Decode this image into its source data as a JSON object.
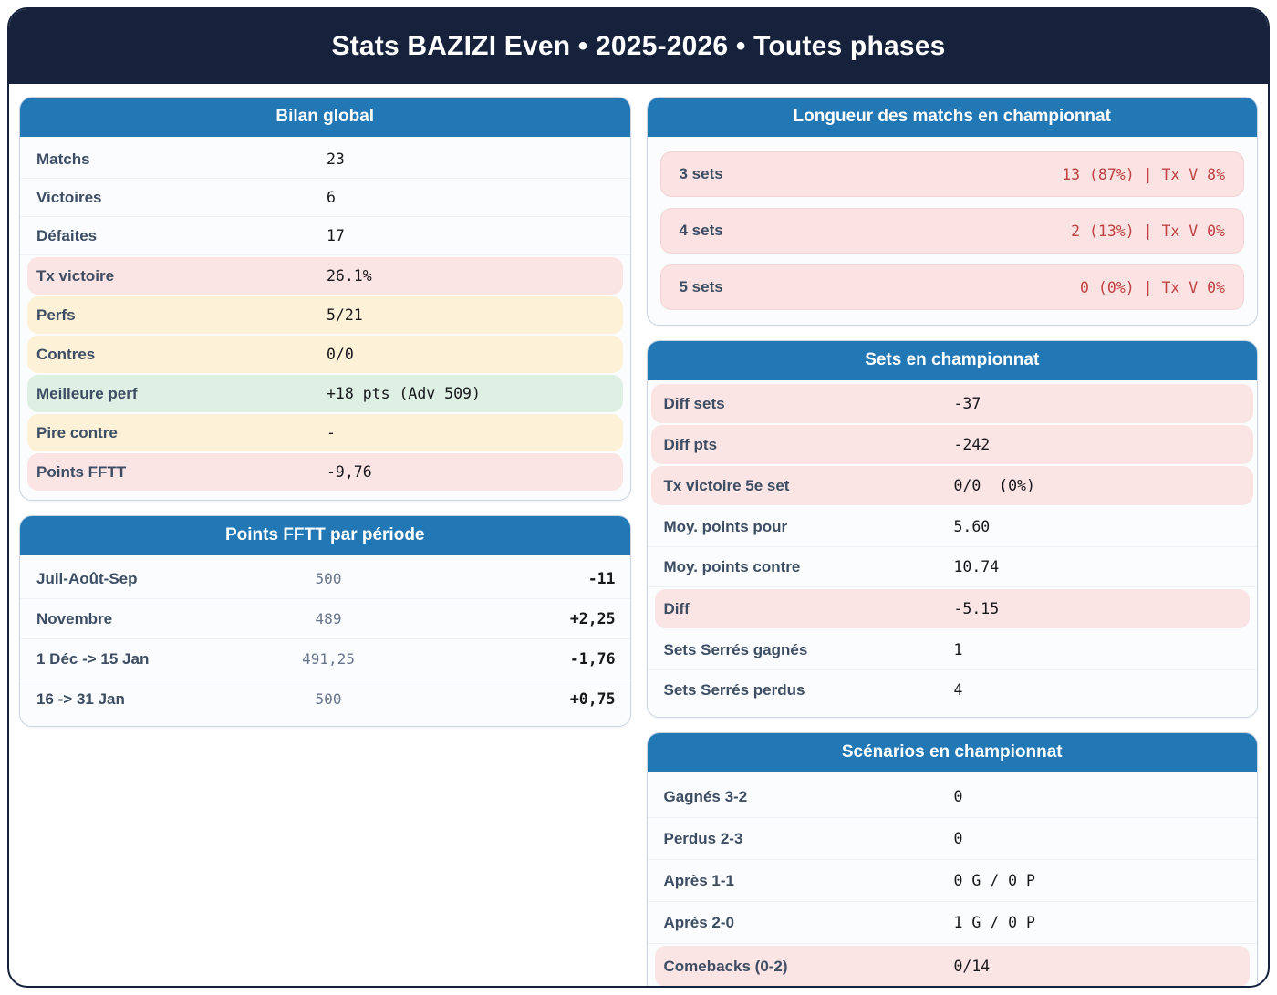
{
  "header": {
    "title": "Stats BAZIZI Even • 2025-2026 • Toutes phases"
  },
  "colors": {
    "page_border": "#16223c",
    "header_navy": "#16223c",
    "card_header_blue": "#2277b5",
    "label_slate": "#3d4d63",
    "highlight_pink": "#fbe4e4",
    "highlight_cream": "#fdf1d7",
    "highlight_green": "#def0e4",
    "value_red": "#bf4343"
  },
  "cards": {
    "bilan": {
      "title": "Bilan global",
      "rows": [
        {
          "label": "Matchs",
          "value": "23"
        },
        {
          "label": "Victoires",
          "value": "6"
        },
        {
          "label": "Défaites",
          "value": "17"
        },
        {
          "label": "Tx victoire",
          "value": "26.1%"
        },
        {
          "label": "Perfs",
          "value": "5/21"
        },
        {
          "label": "Contres",
          "value": "0/0"
        },
        {
          "label": "Meilleure perf",
          "value": "+18 pts (Adv 509)"
        },
        {
          "label": "Pire contre",
          "value": "-"
        },
        {
          "label": "Points FFTT",
          "value": "-9,76"
        }
      ]
    },
    "periodes": {
      "title": "Points FFTT par période",
      "rows": [
        {
          "label": "Juil-Août-Sep",
          "points": "500",
          "delta": "-11"
        },
        {
          "label": "Novembre",
          "points": "489",
          "delta": "+2,25"
        },
        {
          "label": "1 Déc -> 15 Jan",
          "points": "491,25",
          "delta": "-1,76"
        },
        {
          "label": "16 -> 31 Jan",
          "points": "500",
          "delta": "+0,75"
        }
      ]
    },
    "longueur": {
      "title": "Longueur des matchs en championnat",
      "rows": [
        {
          "label": "3 sets",
          "value": "13 (87%) | Tx V 8%"
        },
        {
          "label": "4 sets",
          "value": "2 (13%) | Tx V 0%"
        },
        {
          "label": "5 sets",
          "value": "0 (0%) | Tx V 0%"
        }
      ]
    },
    "sets": {
      "title": "Sets en championnat",
      "rows": [
        {
          "label": "Diff sets",
          "value": "-37"
        },
        {
          "label": "Diff pts",
          "value": "-242"
        },
        {
          "label": "Tx victoire 5e set",
          "value": "0/0  (0%)"
        },
        {
          "label": "Moy. points pour",
          "value": "5.60"
        },
        {
          "label": "Moy. points contre",
          "value": "10.74"
        },
        {
          "label": "Diff",
          "value": "-5.15"
        },
        {
          "label": "Sets Serrés gagnés",
          "value": "1"
        },
        {
          "label": "Sets Serrés perdus",
          "value": "4"
        }
      ]
    },
    "scenarios": {
      "title": "Scénarios en championnat",
      "rows": [
        {
          "label": "Gagnés 3-2",
          "value": "0"
        },
        {
          "label": "Perdus 2-3",
          "value": "0"
        },
        {
          "label": "Après 1-1",
          "value": "0 G / 0 P"
        },
        {
          "label": "Après 2-0",
          "value": "1 G / 0 P"
        },
        {
          "label": "Comebacks (0-2)",
          "value": "0/14"
        }
      ]
    }
  }
}
